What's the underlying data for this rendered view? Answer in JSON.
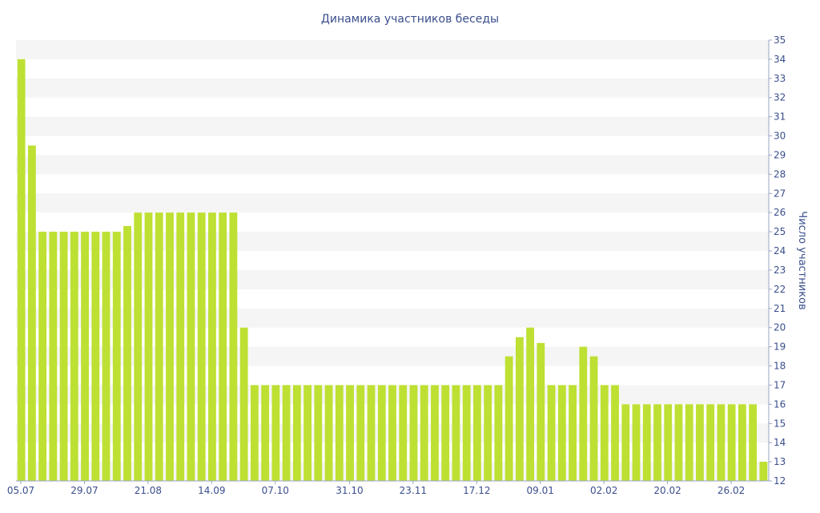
{
  "chart_data": {
    "type": "bar",
    "title": "Динамика участников беседы",
    "xlabel": "",
    "ylabel": "Число участников",
    "ylim": [
      12,
      35
    ],
    "y_ticks": [
      12,
      13,
      14,
      15,
      16,
      17,
      18,
      19,
      20,
      21,
      22,
      23,
      24,
      25,
      26,
      27,
      28,
      29,
      30,
      31,
      32,
      33,
      34,
      35
    ],
    "y_axis_position": "right",
    "x_ticks": [
      "05.07",
      "29.07",
      "21.08",
      "14.09",
      "07.10",
      "31.10",
      "23.11",
      "17.12",
      "09.01",
      "02.02",
      "20.02",
      "26.02"
    ],
    "grid": "alternating horizontal bands",
    "colors": {
      "bar": "#bde033",
      "band": "#f5f5f5",
      "text": "#3a4e8c",
      "axis": "#9aa5c0"
    },
    "values": [
      34,
      29.5,
      25,
      25,
      25,
      25,
      25,
      25,
      25,
      25,
      25.3,
      26,
      26,
      26,
      26,
      26,
      26,
      26,
      26,
      26,
      26,
      20,
      17,
      17,
      17,
      17,
      17,
      17,
      17,
      17,
      17,
      17,
      17,
      17,
      17,
      17,
      17,
      17,
      17,
      17,
      17,
      17,
      17,
      17,
      17,
      17,
      18.5,
      19.5,
      20,
      19.2,
      17,
      17,
      17,
      19,
      18.5,
      17,
      17,
      16,
      16,
      16,
      16,
      16,
      16,
      16,
      16,
      16,
      16,
      16,
      16,
      16,
      13
    ]
  }
}
